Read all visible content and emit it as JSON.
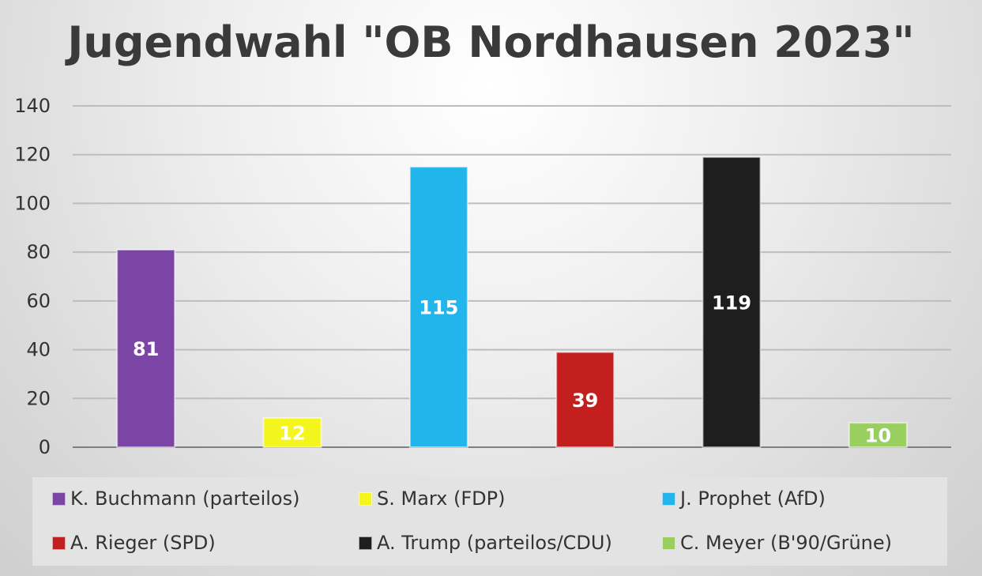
{
  "chart_data": {
    "type": "bar",
    "title": "Jugendwahl \"OB Nordhausen 2023\"",
    "xlabel": "",
    "ylabel": "",
    "ylim": [
      0,
      140
    ],
    "yticks": [
      "0",
      "20",
      "40",
      "60",
      "80",
      "100",
      "120",
      "140"
    ],
    "grid": true,
    "legend_position": "bottom",
    "categories": [
      "K. Buchmann (parteilos)",
      "S. Marx (FDP)",
      "J. Prophet (AfD)",
      "A. Rieger (SPD)",
      "A. Trump (parteilos/CDU)",
      "C. Meyer (B'90/Grüne)"
    ],
    "values": [
      81,
      12,
      115,
      39,
      119,
      10
    ],
    "data_labels": [
      "81",
      "12",
      "115",
      "39",
      "119",
      "10"
    ],
    "colors": [
      "#7b45a6",
      "#f5f51e",
      "#22b5eb",
      "#c41f1f",
      "#1e1e1e",
      "#98cf5e"
    ]
  }
}
